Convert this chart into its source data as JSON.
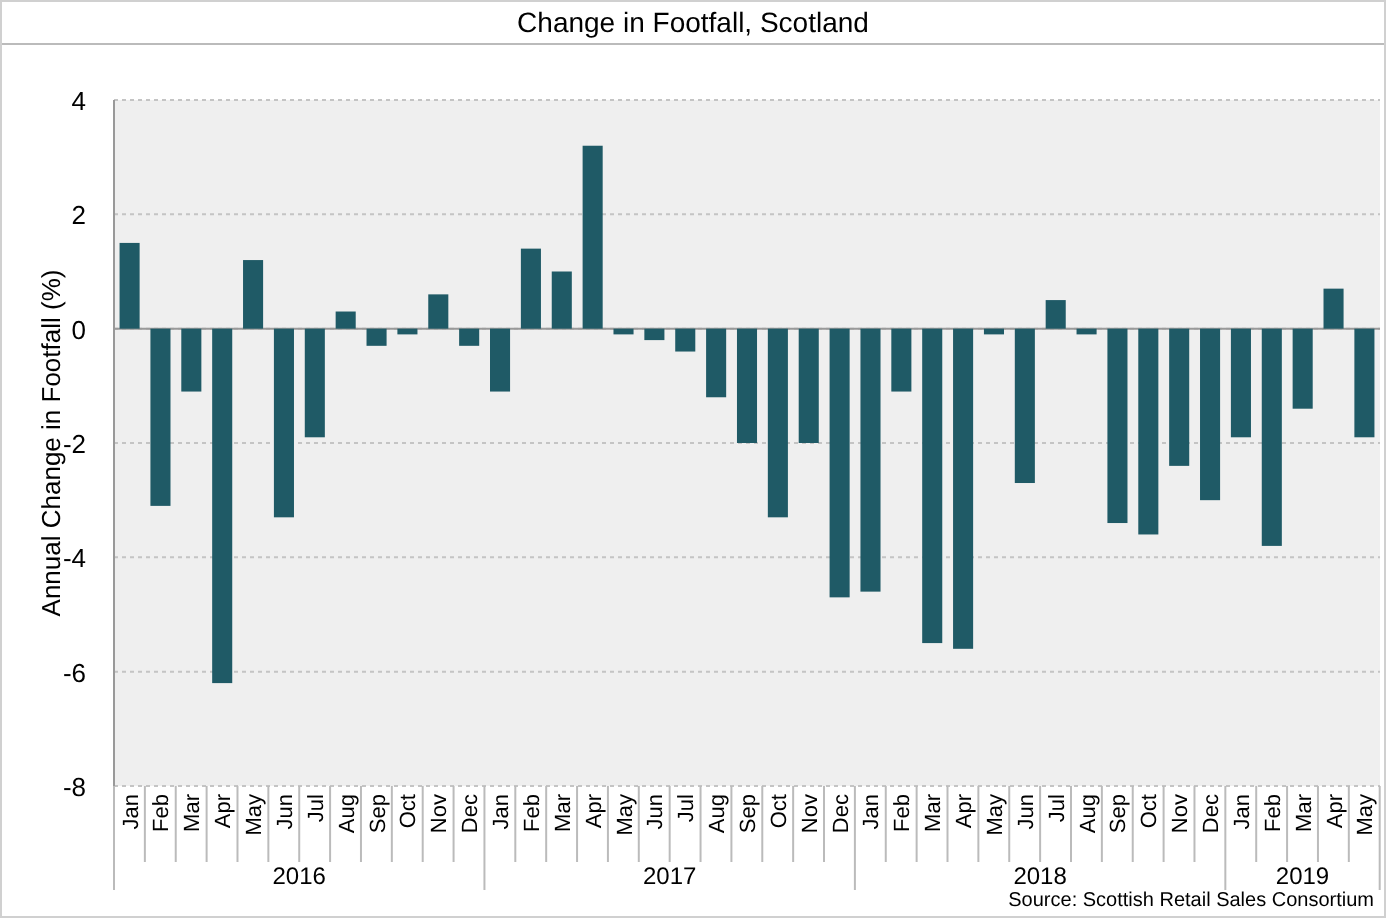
{
  "chart_data": {
    "type": "bar",
    "title": "Change in Footfall, Scotland",
    "ylabel": "Annual Change in Footfall (%)",
    "categories": [
      "Jan",
      "Feb",
      "Mar",
      "Apr",
      "May",
      "Jun",
      "Jul",
      "Aug",
      "Sep",
      "Oct",
      "Nov",
      "Dec",
      "Jan",
      "Feb",
      "Mar",
      "Apr",
      "May",
      "Jun",
      "Jul",
      "Aug",
      "Sep",
      "Oct",
      "Nov",
      "Dec",
      "Jan",
      "Feb",
      "Mar",
      "Apr",
      "May",
      "Jun",
      "Jul",
      "Aug",
      "Sep",
      "Oct",
      "Nov",
      "Dec",
      "Jan",
      "Feb",
      "Mar",
      "Apr",
      "May"
    ],
    "values": [
      1.5,
      -3.1,
      -1.1,
      -6.2,
      1.2,
      -3.3,
      -1.9,
      0.3,
      -0.3,
      -0.1,
      0.6,
      -0.3,
      -1.1,
      1.4,
      1.0,
      3.2,
      -0.1,
      -0.2,
      -0.4,
      -1.2,
      -2.0,
      -3.3,
      -2.0,
      -4.7,
      -4.6,
      -1.1,
      -5.5,
      -5.6,
      -0.1,
      -2.7,
      0.5,
      -0.1,
      -3.4,
      -3.6,
      -2.4,
      -3.0,
      -1.9,
      -3.8,
      -1.4,
      0.7,
      -1.9
    ],
    "color": "#1f5a66",
    "ylim": [
      -8,
      4
    ],
    "yticks": [
      -8,
      -6,
      -4,
      -2,
      0,
      2,
      4
    ],
    "grid": "y",
    "annotations": [
      "2016",
      "2017",
      "2018",
      "2019",
      "Source: Scottish Retail Sales Consortium"
    ]
  }
}
